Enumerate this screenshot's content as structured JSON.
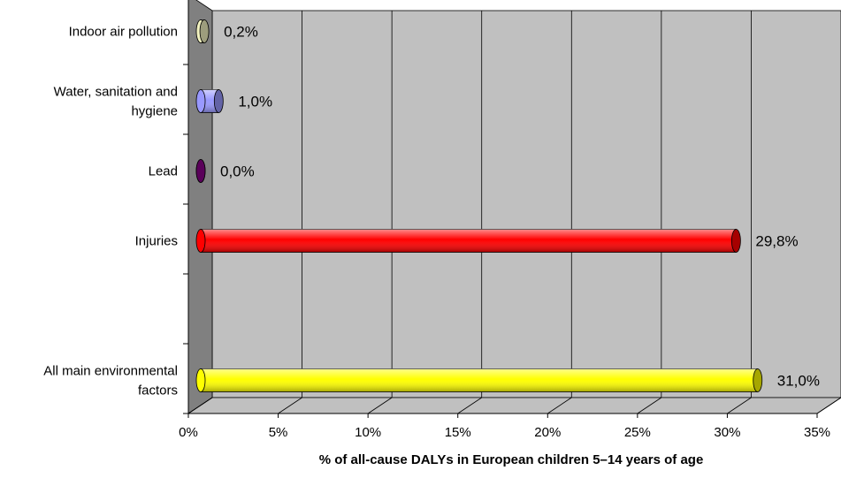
{
  "chart_data": {
    "type": "bar",
    "orientation": "horizontal",
    "style": "3d-cylinder",
    "title": "",
    "xlabel": "% of all-cause DALYs in European children 5–14 years of age",
    "ylabel": "",
    "xlim": [
      0,
      35
    ],
    "x_ticks": [
      "0%",
      "5%",
      "10%",
      "15%",
      "20%",
      "25%",
      "30%",
      "35%"
    ],
    "grid": true,
    "legend": "none",
    "series": [
      {
        "categories": [
          "Indoor air pollution",
          "Water, sanitation and hygiene",
          "Lead",
          "Injuries",
          "All main environmental factors"
        ],
        "values": [
          0.2,
          1.0,
          0.0,
          29.8,
          31.0
        ],
        "data_labels": [
          "0,2%",
          "1,0%",
          "0,0%",
          "29,8%",
          "31,0%"
        ],
        "colors": [
          "#f2f2c0",
          "#9999ff",
          "#8b008b",
          "#ff0000",
          "#ffff00"
        ]
      }
    ],
    "category_labels": [
      [
        "Indoor air pollution"
      ],
      [
        "Water, sanitation and",
        "hygiene"
      ],
      [
        "Lead"
      ],
      [
        "Injuries"
      ],
      [
        "All main environmental",
        "factors"
      ]
    ],
    "plot_background": "#c0c0c0",
    "wall_color": "#808080"
  }
}
